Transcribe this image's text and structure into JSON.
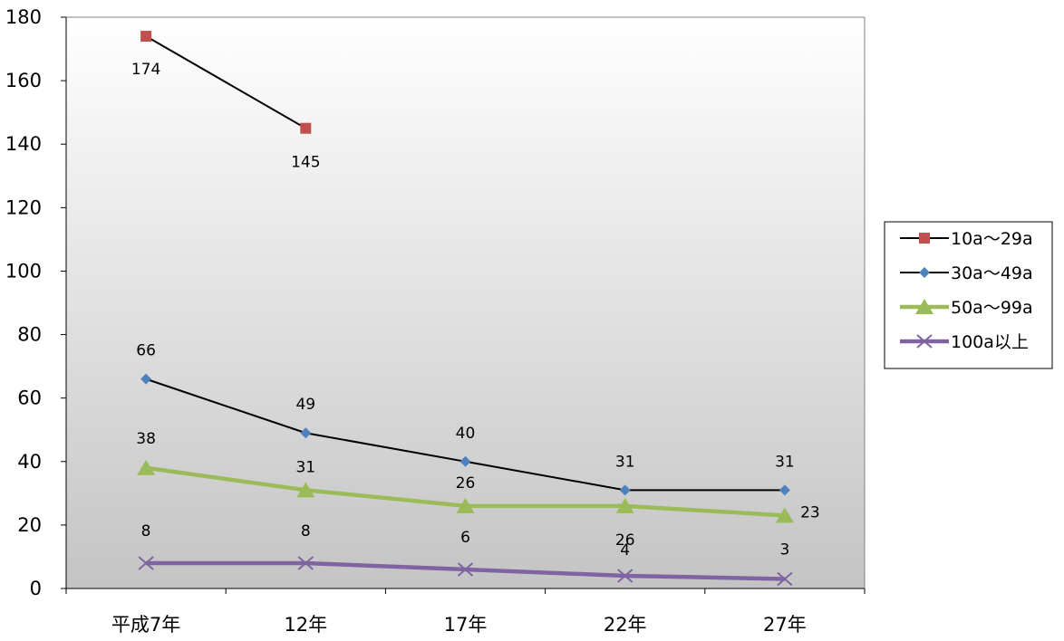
{
  "chart_data": {
    "type": "line",
    "categories": [
      "平成7年",
      "12年",
      "17年",
      "22年",
      "27年"
    ],
    "ylim": [
      0,
      180
    ],
    "yticks": [
      0,
      20,
      40,
      60,
      80,
      100,
      120,
      140,
      160,
      180
    ],
    "ytick_labels": [
      "0",
      "20",
      "40",
      "60",
      "80",
      "100",
      "120",
      "140",
      "160",
      "180"
    ],
    "grid": false,
    "legend_position": "right",
    "plot_background": "gradient white to gray",
    "series": [
      {
        "name": "10a〜29a",
        "values": [
          174,
          145,
          null,
          null,
          null
        ],
        "labels": [
          "174",
          "145"
        ],
        "line_color": "#000000",
        "marker": "square",
        "marker_color": "#C0504D"
      },
      {
        "name": "30a〜49a",
        "values": [
          66,
          49,
          40,
          31,
          31
        ],
        "labels": [
          "66",
          "49",
          "40",
          "31",
          "31"
        ],
        "line_color": "#000000",
        "marker": "diamond",
        "marker_color": "#4F81BD"
      },
      {
        "name": "50a〜99a",
        "values": [
          38,
          31,
          26,
          26,
          23
        ],
        "labels": [
          "38",
          "31",
          "26",
          "26",
          "23"
        ],
        "line_color": "#9BBB59",
        "marker": "triangle",
        "marker_color": "#9BBB59"
      },
      {
        "name": "100a以上",
        "values": [
          8,
          8,
          6,
          4,
          3
        ],
        "labels": [
          "8",
          "8",
          "6",
          "4",
          "3"
        ],
        "line_color": "#8064A2",
        "marker": "x",
        "marker_color": "#8064A2"
      }
    ]
  }
}
